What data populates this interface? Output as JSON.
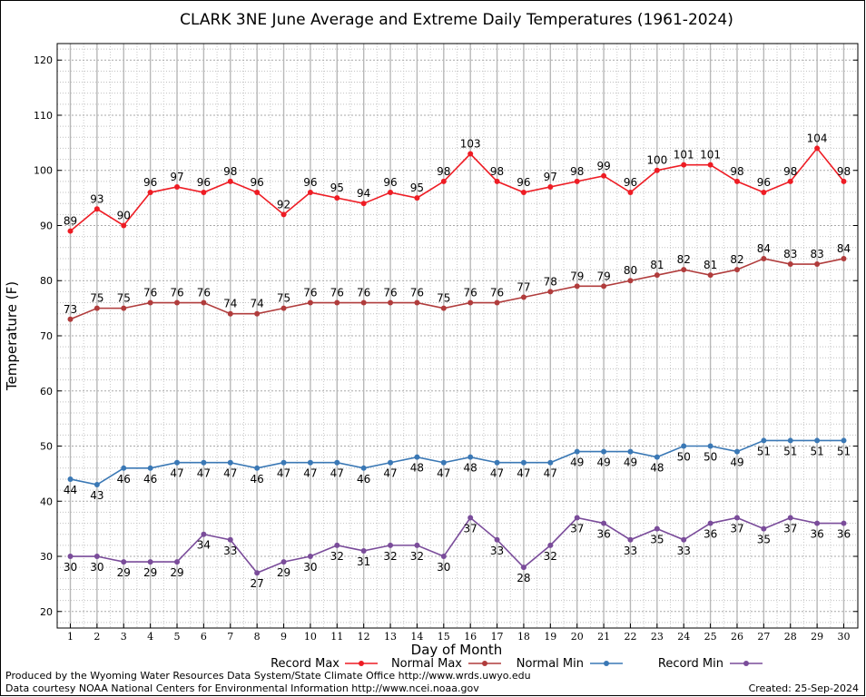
{
  "chart_data": {
    "type": "line",
    "title": "CLARK 3NE June Average and Extreme Daily Temperatures (1961-2024)",
    "xlabel": "Day of Month",
    "ylabel": "Temperature (F)",
    "ylim": [
      17,
      123
    ],
    "yticks": [
      20,
      30,
      40,
      50,
      60,
      70,
      80,
      90,
      100,
      110,
      120
    ],
    "x": [
      1,
      2,
      3,
      4,
      5,
      6,
      7,
      8,
      9,
      10,
      11,
      12,
      13,
      14,
      15,
      16,
      17,
      18,
      19,
      20,
      21,
      22,
      23,
      24,
      25,
      26,
      27,
      28,
      29,
      30
    ],
    "grid": true,
    "legend": "bottom",
    "series": [
      {
        "name": "Record Max",
        "color": "#ee1c24",
        "label_pos": "above",
        "values": [
          89,
          93,
          90,
          96,
          97,
          96,
          98,
          96,
          92,
          96,
          95,
          94,
          96,
          95,
          98,
          103,
          98,
          96,
          97,
          98,
          99,
          96,
          100,
          101,
          101,
          98,
          96,
          98,
          104,
          98
        ]
      },
      {
        "name": "Normal Max",
        "color": "#b03c3c",
        "label_pos": "above",
        "values": [
          73,
          75,
          75,
          76,
          76,
          76,
          74,
          74,
          75,
          76,
          76,
          76,
          76,
          76,
          75,
          76,
          76,
          77,
          78,
          79,
          79,
          80,
          81,
          82,
          81,
          82,
          84,
          83,
          83,
          84
        ]
      },
      {
        "name": "Normal Min",
        "color": "#3a78b5",
        "label_pos": "below",
        "values": [
          44,
          43,
          46,
          46,
          47,
          47,
          47,
          46,
          47,
          47,
          47,
          46,
          47,
          48,
          47,
          48,
          47,
          47,
          47,
          49,
          49,
          49,
          48,
          50,
          50,
          49,
          51,
          51,
          51,
          51
        ]
      },
      {
        "name": "Record Min",
        "color": "#7a4c9a",
        "label_pos": "below",
        "values": [
          30,
          30,
          29,
          29,
          29,
          34,
          33,
          27,
          29,
          30,
          32,
          31,
          32,
          32,
          30,
          37,
          33,
          28,
          32,
          37,
          36,
          33,
          35,
          33,
          36,
          37,
          35,
          37,
          36,
          36
        ]
      }
    ]
  },
  "footer": {
    "produced_by": "Produced by the Wyoming Water Resources Data System/State Climate Office http://www.wrds.uwyo.edu",
    "data_courtesy": "Data courtesy NOAA National Centers for Environmental Information http://www.ncei.noaa.gov",
    "created": "Created:  25-Sep-2024"
  }
}
